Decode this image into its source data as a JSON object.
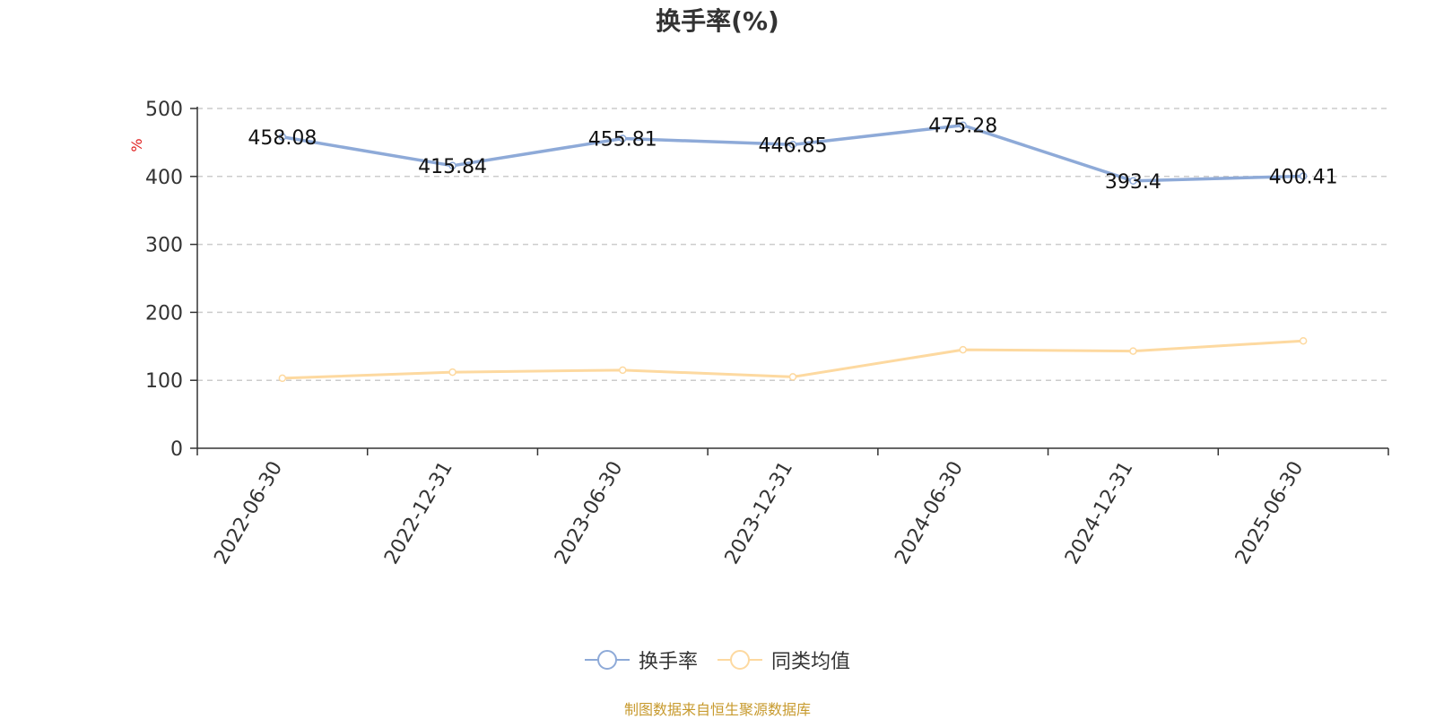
{
  "chart_data": {
    "type": "line",
    "title": "换手率(%)",
    "ylabel": "%",
    "ylim": [
      0,
      500
    ],
    "yticks": [
      0,
      100,
      200,
      300,
      400,
      500
    ],
    "categories": [
      "2022-06-30",
      "2022-12-31",
      "2023-06-30",
      "2023-12-31",
      "2024-06-30",
      "2024-12-31",
      "2025-06-30"
    ],
    "series": [
      {
        "name": "换手率",
        "color": "#8eaad8",
        "values": [
          458.08,
          415.84,
          455.81,
          446.85,
          475.28,
          393.4,
          400.41
        ],
        "labels": [
          "458.08",
          "415.84",
          "455.81",
          "446.85",
          "475.28",
          "393.4",
          "400.41"
        ],
        "show_labels": true
      },
      {
        "name": "同类均值",
        "color": "#fdd9a0",
        "values": [
          103,
          112,
          115,
          105,
          145,
          143,
          158
        ],
        "show_labels": false
      }
    ],
    "grid": "horizontal-dashed",
    "legend_position": "bottom-center"
  },
  "source_note": "制图数据来自恒生聚源数据库"
}
